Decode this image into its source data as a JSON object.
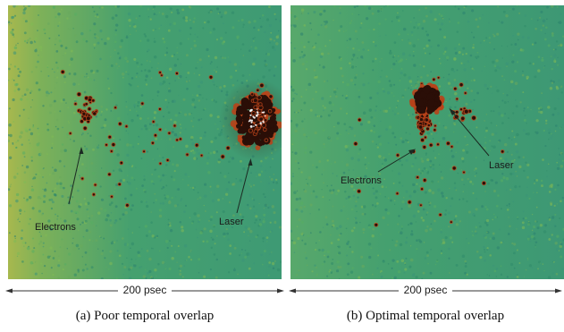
{
  "panels": [
    {
      "id": "a",
      "electrons_label": "Electrons",
      "laser_label": "Laser",
      "scale_label": "200 psec",
      "caption": "(a)  Poor temporal overlap"
    },
    {
      "id": "b",
      "electrons_label": "Electrons",
      "laser_label": "Laser",
      "scale_label": "200 psec",
      "caption": "(b)  Optimal temporal overlap"
    }
  ],
  "colors": {
    "background_green": "#3f9f72",
    "background_yellow": "#a7b84e",
    "spot_dark": "#2a0e07",
    "spot_rim": "#b8431a",
    "spot_core_white": "#ffffff"
  }
}
